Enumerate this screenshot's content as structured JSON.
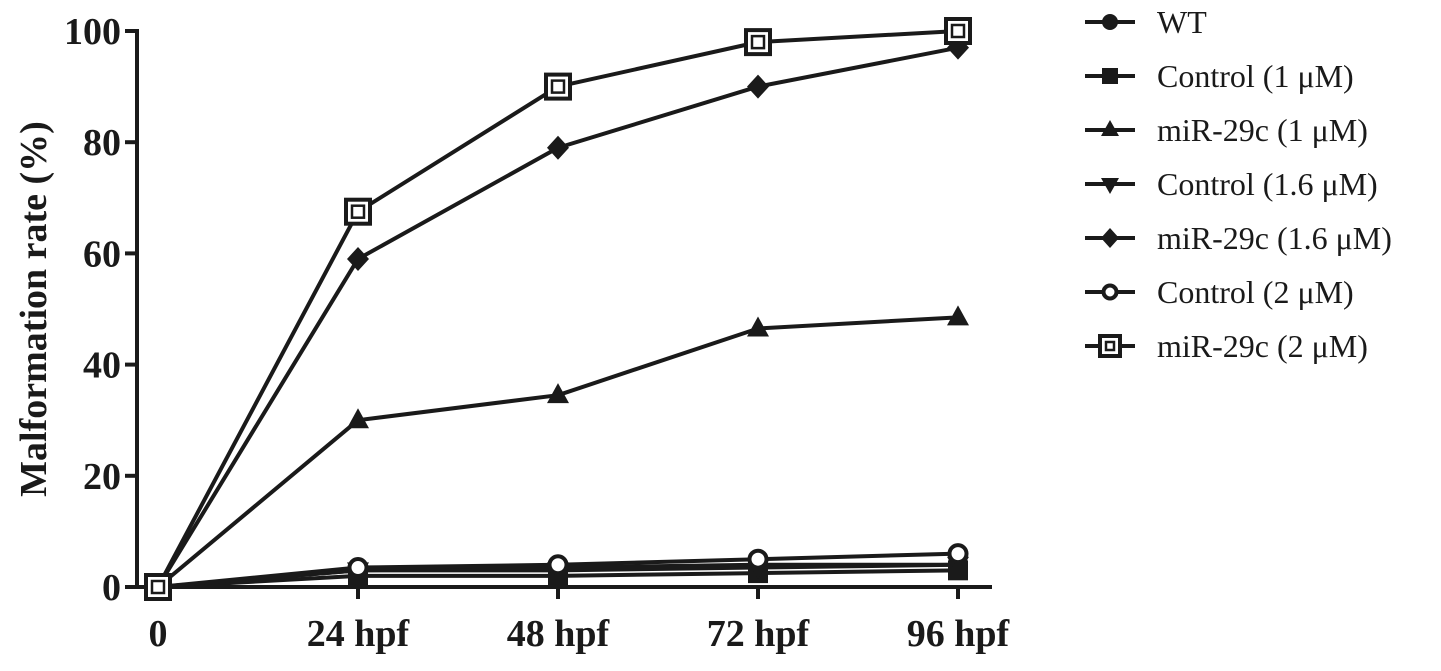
{
  "chart_data": {
    "type": "line",
    "xlabel": "",
    "ylabel": "Malformation rate (%)",
    "categories": [
      "0",
      "24 hpf",
      "48 hpf",
      "72 hpf",
      "96 hpf"
    ],
    "x": [
      0,
      24,
      48,
      72,
      96
    ],
    "ylim": [
      0,
      100
    ],
    "yticks": [
      0,
      20,
      40,
      60,
      80,
      100
    ],
    "grid": false,
    "legend_position": "right",
    "series": [
      {
        "name": "WT",
        "marker": "circle-filled",
        "values": [
          0,
          3,
          3.5,
          4,
          4
        ]
      },
      {
        "name": "Control (1 μM)",
        "marker": "square-filled",
        "values": [
          0,
          2,
          2,
          2.5,
          3
        ]
      },
      {
        "name": "miR-29c (1 μM)",
        "marker": "triangle-up-filled",
        "values": [
          0,
          30,
          34.5,
          46.5,
          48.5
        ]
      },
      {
        "name": "Control (1.6 μM)",
        "marker": "triangle-down-filled",
        "values": [
          0,
          3,
          3,
          3.5,
          4
        ]
      },
      {
        "name": "miR-29c (1.6 μM)",
        "marker": "diamond-filled",
        "values": [
          0,
          59,
          79,
          90,
          97
        ]
      },
      {
        "name": "Control (2 μM)",
        "marker": "circle-open",
        "values": [
          0,
          3.5,
          4,
          5,
          6
        ]
      },
      {
        "name": "miR-29c (2 μM)",
        "marker": "square-open",
        "values": [
          0,
          67.5,
          90,
          98,
          100
        ]
      }
    ]
  }
}
